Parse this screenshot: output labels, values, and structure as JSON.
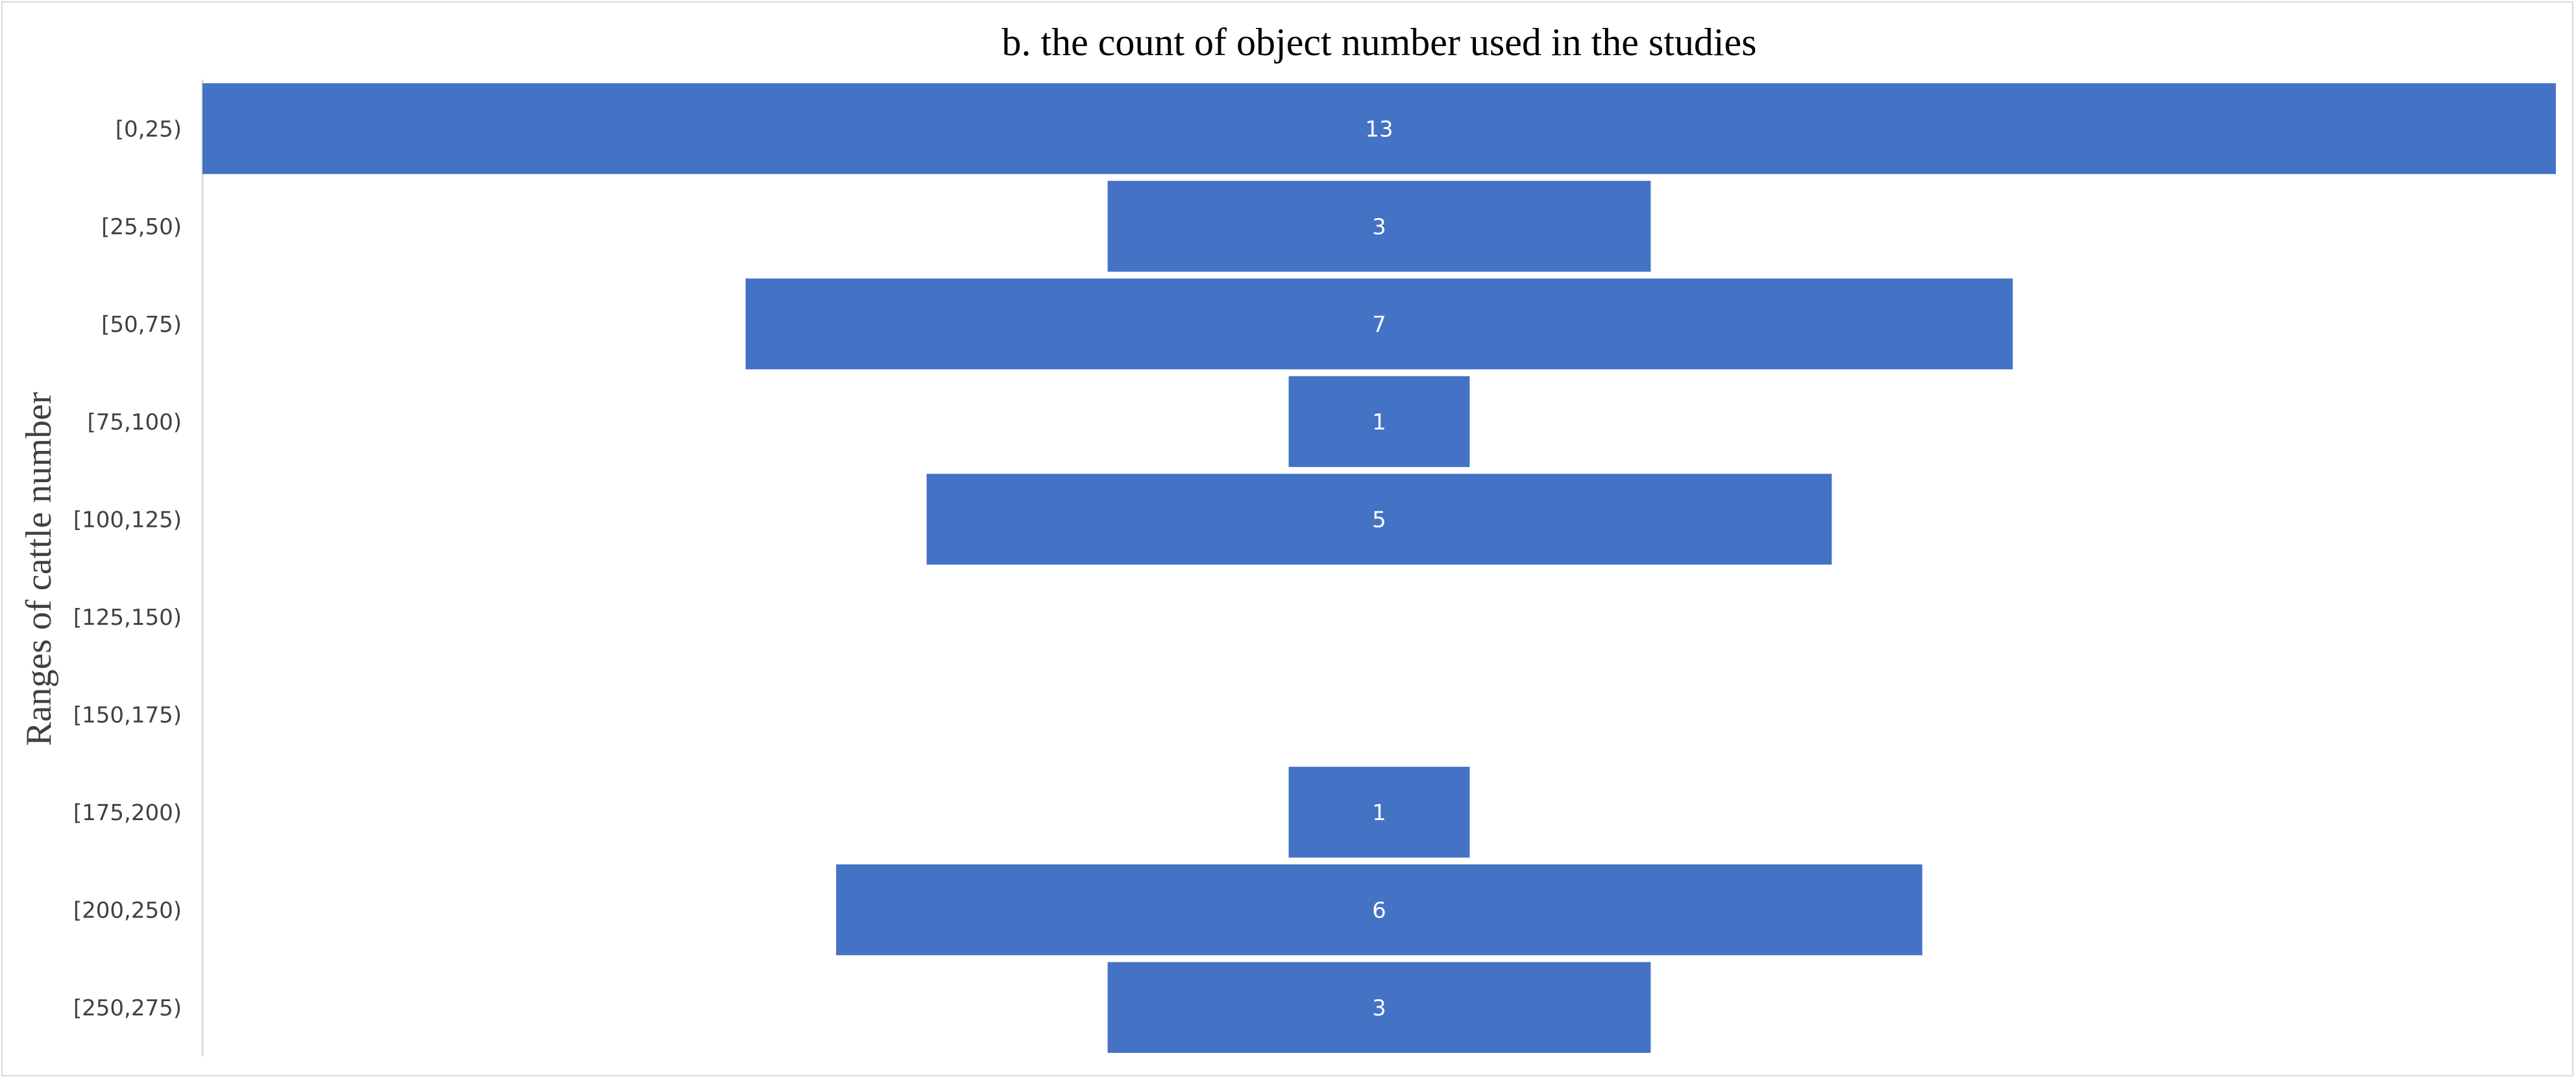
{
  "chart_data": {
    "type": "bar",
    "orientation": "horizontal",
    "style": "funnel-centered",
    "title": "b. the count of  object number used in the studies",
    "ylabel": "Ranges of  cattle number",
    "xlabel": "",
    "categories": [
      "[0,25)",
      "[25,50)",
      "[50,75)",
      "[75,100)",
      "[100,125)",
      "[125,150)",
      "[150,175)",
      "[175,200)",
      "[200,250)",
      "[250,275)"
    ],
    "values": [
      13,
      3,
      7,
      1,
      5,
      0,
      0,
      1,
      6,
      3
    ],
    "data_labels": [
      "13",
      "3",
      "7",
      "1",
      "5",
      "",
      "",
      "1",
      "6",
      "3"
    ],
    "xlim": [
      0,
      13
    ],
    "grid": false,
    "legend": "none",
    "bar_color": "#4472C4",
    "label_color": "#FFFFFF",
    "axis_line_color": "#D9D9D9"
  }
}
